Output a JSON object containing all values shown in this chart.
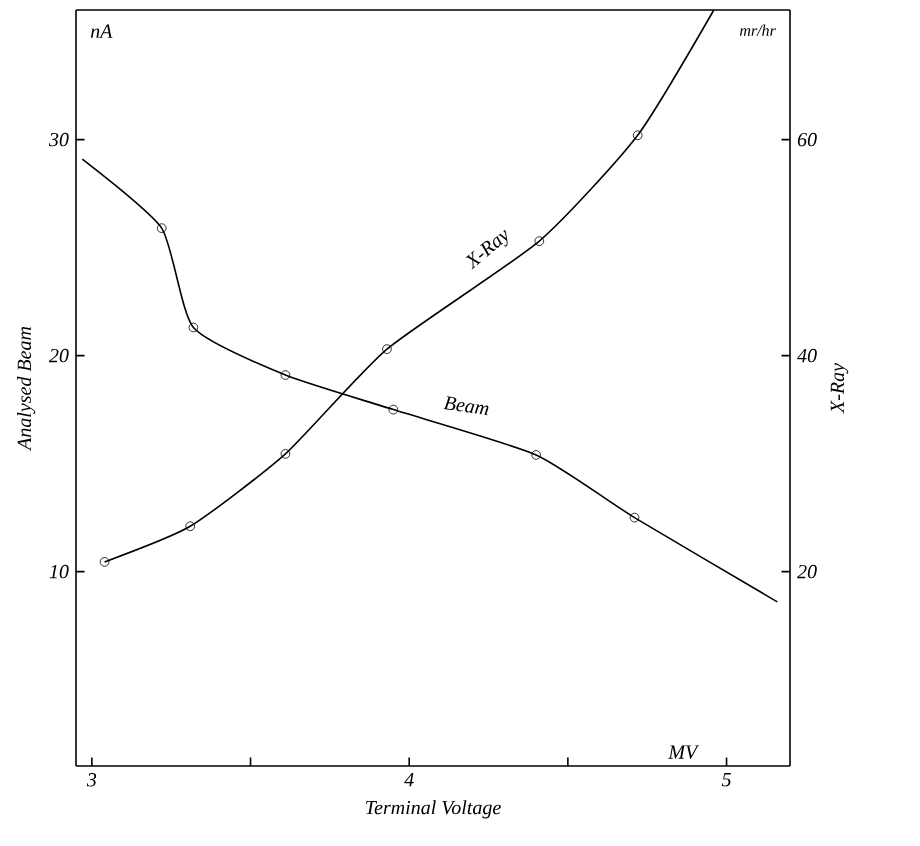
{
  "chart_data": {
    "type": "line",
    "xlabel": "Terminal Voltage",
    "ylabel": "Analysed Beam",
    "y2label": "X-Ray",
    "xlim": [
      2.95,
      5.2
    ],
    "xticks": [
      3,
      {
        "value": 3.5,
        "label": null
      },
      4,
      {
        "value": 4.5,
        "label": null
      },
      5
    ],
    "ylim": [
      1,
      36
    ],
    "yticks": [
      10,
      20,
      30
    ],
    "y2lim": [
      2,
      72
    ],
    "y2ticks": [
      20,
      40,
      60
    ],
    "annotations": [
      "nA",
      "mr/hr",
      "MV"
    ],
    "series": [
      {
        "color": "#000000",
        "marker": "none",
        "x": [
          2.97,
          3.22,
          3.32,
          3.61,
          3.95,
          4.4,
          4.71,
          5.16
        ],
        "values": [
          29.1,
          25.9,
          21.3,
          19.1,
          17.5,
          15.4,
          12.5,
          8.6
        ]
      },
      {
        "type": "scatter",
        "name": "Beam",
        "color": "#000000",
        "marker": "circle",
        "x": [
          3.22,
          3.32,
          3.61,
          3.95,
          4.4,
          4.71
        ],
        "values": [
          25.9,
          21.3,
          19.1,
          17.5,
          15.4,
          12.5
        ]
      },
      {
        "axis": "y2",
        "color": "#000000",
        "marker": "none",
        "x": [
          3.04,
          3.31,
          3.61,
          3.93,
          4.41,
          4.72,
          4.96
        ],
        "values": [
          20.9,
          24.2,
          30.9,
          40.6,
          50.6,
          60.4,
          72
        ]
      },
      {
        "type": "scatter",
        "name": "X-Ray",
        "axis": "y2",
        "color": "#000000",
        "marker": "circle",
        "x": [
          3.04,
          3.31,
          3.61,
          3.93,
          4.41,
          4.72
        ],
        "values": [
          20.9,
          24.2,
          30.9,
          40.6,
          50.6,
          60.4
        ]
      }
    ]
  }
}
